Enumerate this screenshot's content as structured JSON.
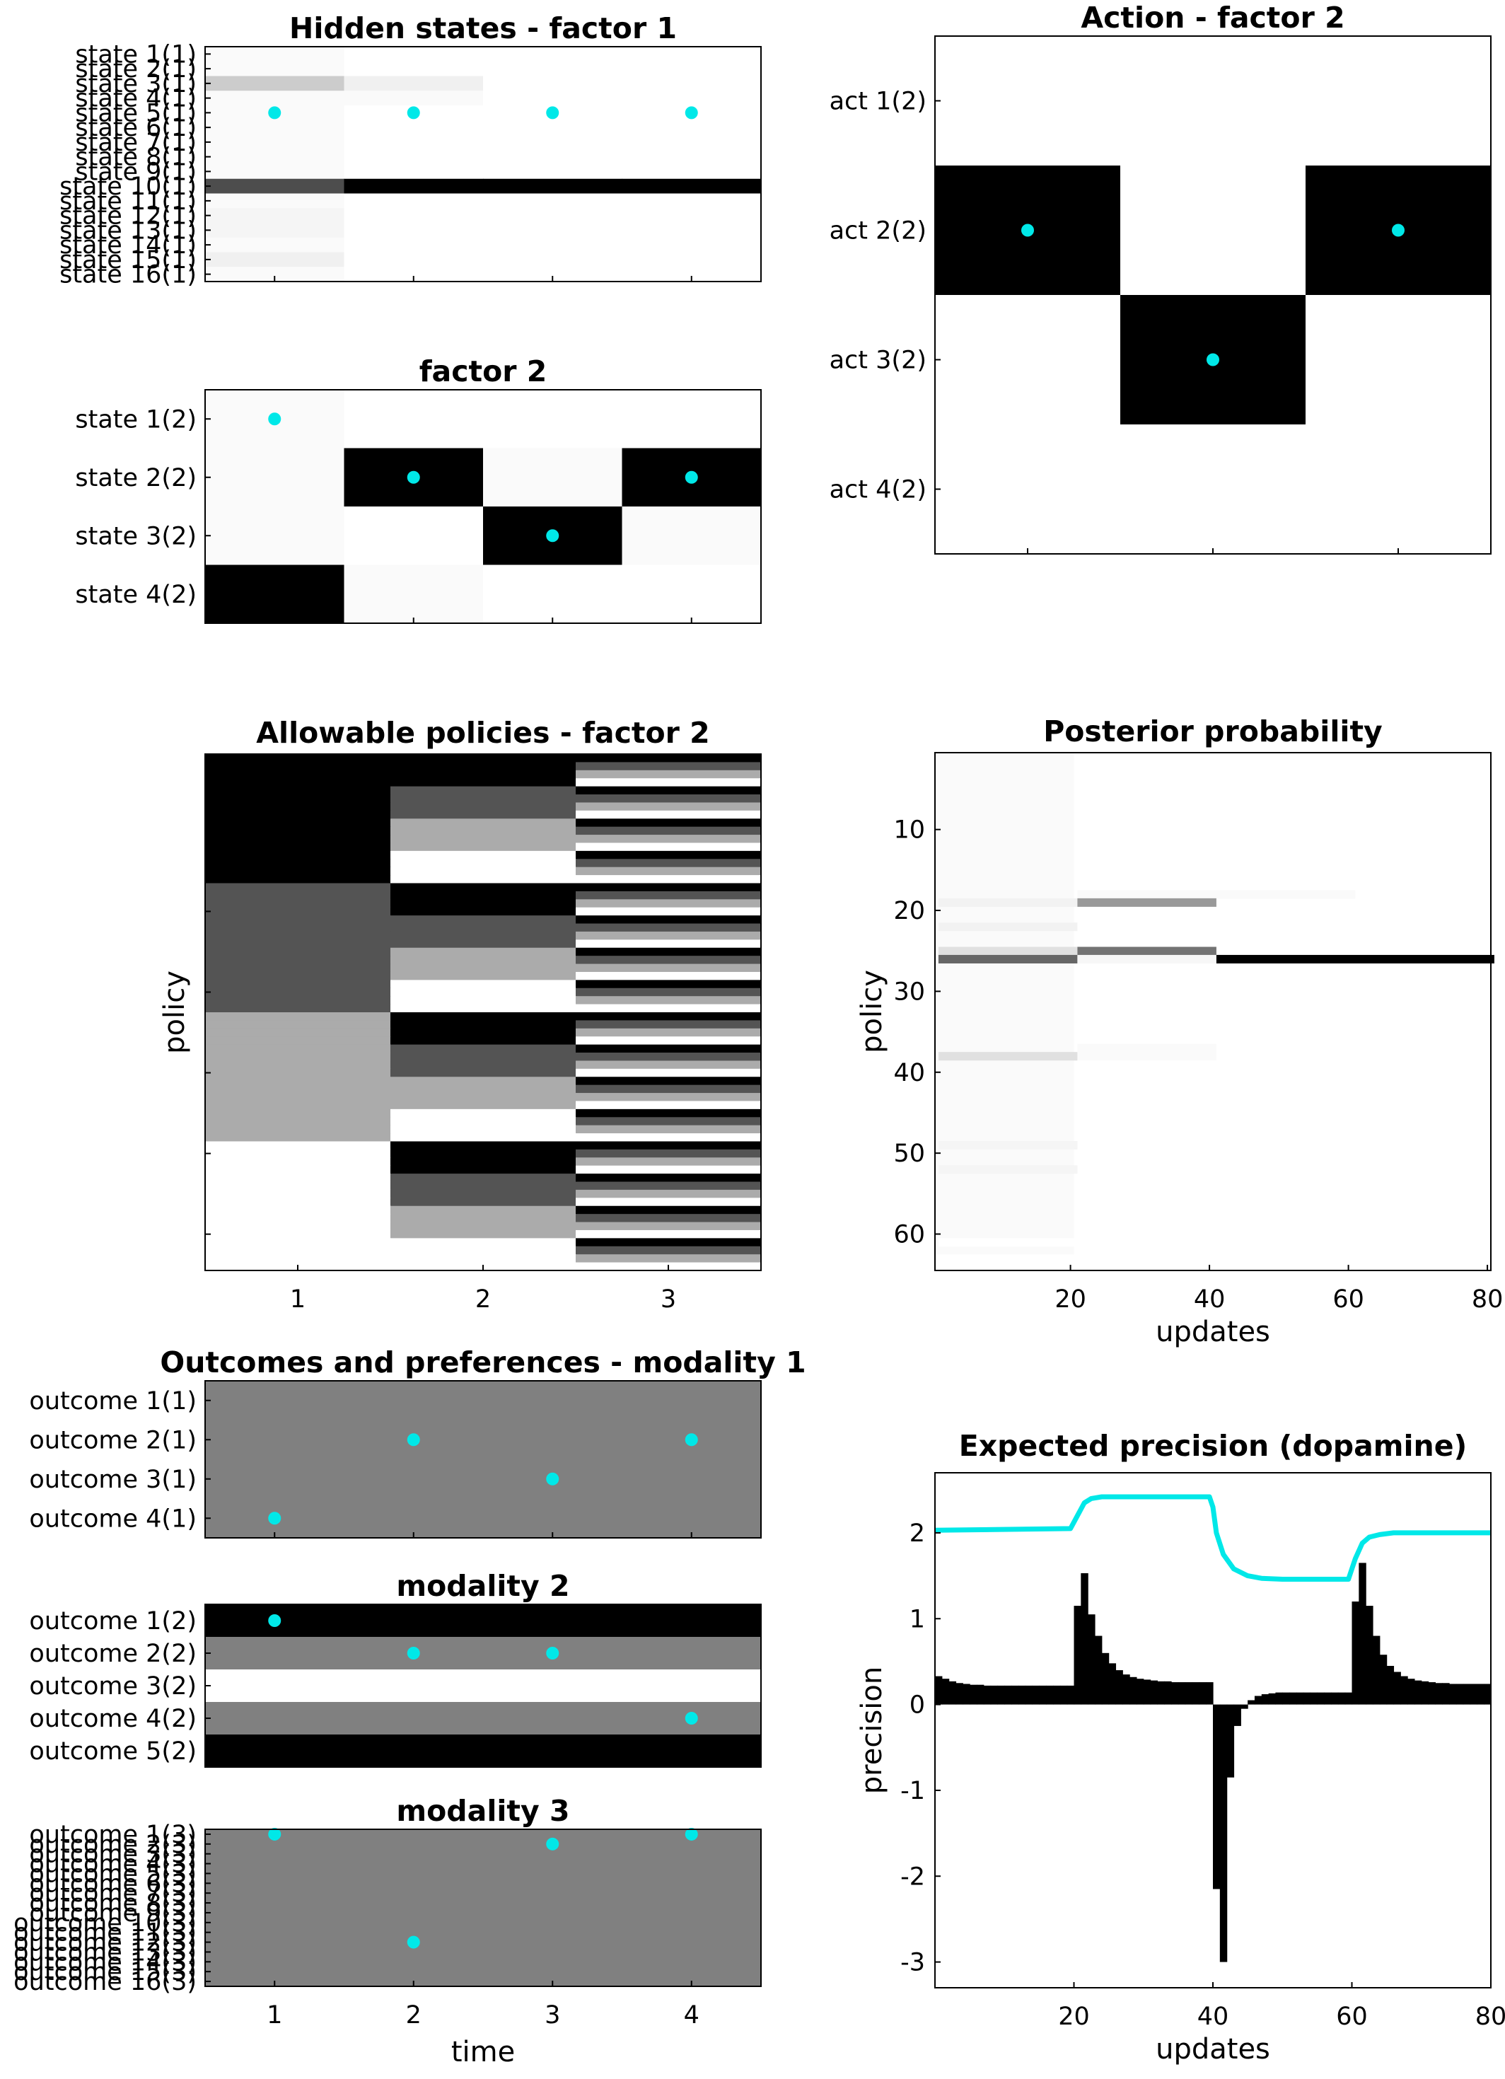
{
  "colors": {
    "marker": "#00e8e8",
    "axis": "#000000",
    "background": "#ffffff",
    "line": "#00e8e8",
    "bar": "#000000"
  },
  "chart_data": [
    {
      "id": "hidden-states-factor-1",
      "type": "heatmap",
      "title": "Hidden states - factor 1",
      "xlabel": "",
      "ylabel": "",
      "xlim": [
        0.5,
        4.5
      ],
      "x_ticks": [
        "1",
        "2",
        "3",
        "4"
      ],
      "rows": [
        "state 1(1)",
        "state 2(1)",
        "state 3(1)",
        "state 4(1)",
        "state 5(1)",
        "state 6(1)",
        "state 7(1)",
        "state 8(1)",
        "state 9(1)",
        "state 10(1)",
        "state 11(1)",
        "state 12(1)",
        "state 13(1)",
        "state 14(1)",
        "state 15(1)",
        "state 16(1)"
      ],
      "values": [
        [
          0.02,
          0,
          0,
          0
        ],
        [
          0.02,
          0,
          0,
          0
        ],
        [
          0.2,
          0.06,
          0,
          0
        ],
        [
          0.02,
          0.02,
          0,
          0
        ],
        [
          0.02,
          0,
          0,
          0
        ],
        [
          0.02,
          0,
          0,
          0
        ],
        [
          0.02,
          0,
          0,
          0
        ],
        [
          0.02,
          0,
          0,
          0
        ],
        [
          0.02,
          0,
          0,
          0
        ],
        [
          0.7,
          1,
          1,
          1
        ],
        [
          0.02,
          0,
          0,
          0
        ],
        [
          0.04,
          0,
          0,
          0
        ],
        [
          0.04,
          0,
          0,
          0
        ],
        [
          0.02,
          0,
          0,
          0
        ],
        [
          0.06,
          0,
          0,
          0
        ],
        [
          0.02,
          0,
          0,
          0
        ]
      ],
      "markers": [
        {
          "x": 1,
          "row": 5
        },
        {
          "x": 2,
          "row": 5
        },
        {
          "x": 3,
          "row": 5
        },
        {
          "x": 4,
          "row": 5
        }
      ]
    },
    {
      "id": "hidden-states-factor-2",
      "type": "heatmap",
      "title": "factor 2",
      "xlabel": "",
      "ylabel": "",
      "xlim": [
        0.5,
        4.5
      ],
      "x_ticks": [],
      "rows": [
        "state 1(2)",
        "state 2(2)",
        "state 3(2)",
        "state 4(2)"
      ],
      "values": [
        [
          0.02,
          0,
          0,
          0
        ],
        [
          0.02,
          1,
          0.02,
          1
        ],
        [
          0.02,
          0,
          1,
          0.02
        ],
        [
          1,
          0.02,
          0,
          0
        ]
      ],
      "markers": [
        {
          "x": 1,
          "row": 1
        },
        {
          "x": 2,
          "row": 2
        },
        {
          "x": 3,
          "row": 3
        },
        {
          "x": 4,
          "row": 2
        }
      ]
    },
    {
      "id": "action-factor-2",
      "type": "heatmap",
      "title": "Action - factor 2",
      "xlabel": "",
      "ylabel": "",
      "xlim": [
        0.5,
        3.5
      ],
      "x_ticks": [],
      "rows": [
        "act 1(2)",
        "act 2(2)",
        "act 3(2)",
        "act 4(2)"
      ],
      "values": [
        [
          0,
          0,
          0
        ],
        [
          1,
          0,
          1
        ],
        [
          0,
          1,
          0
        ],
        [
          0,
          0,
          0
        ]
      ],
      "markers": [
        {
          "x": 1,
          "row": 2
        },
        {
          "x": 2,
          "row": 3
        },
        {
          "x": 3,
          "row": 2
        }
      ]
    },
    {
      "id": "allowable-policies",
      "type": "heatmap",
      "title": "Allowable policies - factor 2",
      "xlabel": "",
      "ylabel": "policy",
      "x_ticks": [
        "1",
        "2",
        "3"
      ],
      "n_policies": 64,
      "levels": [
        1,
        0.67,
        0.33,
        0
      ],
      "rule": "column 1 = action index of floor(p/16); column 2 = floor(p/4) mod 4; column 3 = p mod 4; level 1 = black, 0 = white"
    },
    {
      "id": "posterior-probability",
      "type": "heatmap",
      "title": "Posterior probability",
      "xlabel": "updates",
      "ylabel": "policy",
      "xlim": [
        0.5,
        80.5
      ],
      "ylim": [
        0.5,
        64.5
      ],
      "x_ticks": [
        "20",
        "40",
        "60",
        "80"
      ],
      "y_ticks": [
        "10",
        "20",
        "30",
        "40",
        "50",
        "60"
      ],
      "background_level": 0.02,
      "first_block_updates": [
        1,
        20
      ],
      "cells": [
        {
          "policy": 19,
          "updates": [
            1,
            20
          ],
          "value": 0.05
        },
        {
          "policy": 22,
          "updates": [
            1,
            20
          ],
          "value": 0.05
        },
        {
          "policy": 25,
          "updates": [
            1,
            20
          ],
          "value": 0.12
        },
        {
          "policy": 26,
          "updates": [
            1,
            20
          ],
          "value": 0.6
        },
        {
          "policy": 38,
          "updates": [
            1,
            20
          ],
          "value": 0.12
        },
        {
          "policy": 49,
          "updates": [
            1,
            20
          ],
          "value": 0.04
        },
        {
          "policy": 52,
          "updates": [
            1,
            20
          ],
          "value": 0.04
        },
        {
          "policy": 61,
          "updates": [
            1,
            20
          ],
          "value": 0.0
        },
        {
          "policy": 18,
          "updates": [
            21,
            40
          ],
          "value": 0.02
        },
        {
          "policy": 19,
          "updates": [
            21,
            40
          ],
          "value": 0.4
        },
        {
          "policy": 25,
          "updates": [
            21,
            40
          ],
          "value": 0.55
        },
        {
          "policy": 26,
          "updates": [
            21,
            40
          ],
          "value": 0.03
        },
        {
          "policy": 37,
          "updates": [
            21,
            40
          ],
          "value": 0.02
        },
        {
          "policy": 38,
          "updates": [
            21,
            40
          ],
          "value": 0.02
        },
        {
          "policy": 18,
          "updates": [
            41,
            60
          ],
          "value": 0.02
        },
        {
          "policy": 26,
          "updates": [
            41,
            80
          ],
          "value": 1.0
        }
      ]
    },
    {
      "id": "outcomes-modality-1",
      "type": "heatmap",
      "title": "Outcomes and preferences - modality 1",
      "xlabel": "",
      "ylabel": "",
      "xlim": [
        0.5,
        4.5
      ],
      "x_ticks": [],
      "rows": [
        "outcome 1(1)",
        "outcome 2(1)",
        "outcome 3(1)",
        "outcome 4(1)"
      ],
      "row_levels": [
        0.5,
        0.5,
        0.5,
        0.5
      ],
      "markers": [
        {
          "x": 1,
          "row": 4
        },
        {
          "x": 2,
          "row": 2
        },
        {
          "x": 3,
          "row": 3
        },
        {
          "x": 4,
          "row": 2
        }
      ]
    },
    {
      "id": "outcomes-modality-2",
      "type": "heatmap",
      "title": "modality 2",
      "xlabel": "",
      "ylabel": "",
      "xlim": [
        0.5,
        4.5
      ],
      "x_ticks": [],
      "rows": [
        "outcome 1(2)",
        "outcome 2(2)",
        "outcome 3(2)",
        "outcome 4(2)",
        "outcome 5(2)"
      ],
      "row_levels": [
        1,
        0.5,
        0,
        0.5,
        1
      ],
      "markers": [
        {
          "x": 1,
          "row": 1
        },
        {
          "x": 2,
          "row": 2
        },
        {
          "x": 3,
          "row": 2
        },
        {
          "x": 4,
          "row": 4
        }
      ]
    },
    {
      "id": "outcomes-modality-3",
      "type": "heatmap",
      "title": "modality 3",
      "xlabel": "time",
      "ylabel": "",
      "xlim": [
        0.5,
        4.5
      ],
      "x_ticks": [
        "1",
        "2",
        "3",
        "4"
      ],
      "rows": [
        "outcome 1(3)",
        "outcome 2(3)",
        "outcome 3(3)",
        "outcome 4(3)",
        "outcome 5(3)",
        "outcome 6(3)",
        "outcome 7(3)",
        "outcome 8(3)",
        "outcome 9(3)",
        "outcome 10(3)",
        "outcome 11(3)",
        "outcome 12(3)",
        "outcome 13(3)",
        "outcome 14(3)",
        "outcome 15(3)",
        "outcome 16(3)"
      ],
      "row_levels": [
        0.5,
        0.5,
        0.5,
        0.5,
        0.5,
        0.5,
        0.5,
        0.5,
        0.5,
        0.5,
        0.5,
        0.5,
        0.5,
        0.5,
        0.5,
        0.5
      ],
      "markers": [
        {
          "x": 1,
          "row": 1
        },
        {
          "x": 2,
          "row": 12
        },
        {
          "x": 3,
          "row": 2
        },
        {
          "x": 4,
          "row": 1
        }
      ]
    },
    {
      "id": "expected-precision",
      "type": "bar",
      "title": "Expected precision (dopamine)",
      "xlabel": "updates",
      "ylabel": "precision",
      "xlim": [
        0,
        80
      ],
      "ylim": [
        -3.3,
        2.7
      ],
      "x_ticks": [
        "20",
        "40",
        "60",
        "80"
      ],
      "y_ticks": [
        "-3",
        "-2",
        "-1",
        "0",
        "1",
        "2"
      ],
      "bars": [
        0.33,
        0.3,
        0.27,
        0.25,
        0.24,
        0.23,
        0.23,
        0.22,
        0.22,
        0.22,
        0.22,
        0.22,
        0.22,
        0.22,
        0.22,
        0.22,
        0.22,
        0.22,
        0.22,
        0.22,
        1.15,
        1.53,
        1.05,
        0.8,
        0.6,
        0.48,
        0.4,
        0.35,
        0.32,
        0.3,
        0.29,
        0.28,
        0.27,
        0.27,
        0.26,
        0.26,
        0.26,
        0.26,
        0.26,
        0.26,
        -2.15,
        -3.0,
        -0.85,
        -0.25,
        -0.05,
        0.05,
        0.1,
        0.12,
        0.13,
        0.14,
        0.14,
        0.14,
        0.14,
        0.14,
        0.14,
        0.14,
        0.14,
        0.14,
        0.14,
        0.14,
        1.2,
        1.65,
        1.15,
        0.8,
        0.58,
        0.45,
        0.38,
        0.33,
        0.3,
        0.28,
        0.27,
        0.26,
        0.25,
        0.25,
        0.24,
        0.24,
        0.24,
        0.24,
        0.24,
        0.24
      ],
      "line": {
        "name": "",
        "x": [
          0,
          19.5,
          20.5,
          21.5,
          22.5,
          24,
          39.5,
          40,
          40.5,
          41.5,
          43,
          45,
          47,
          50,
          59.5,
          60.5,
          61.5,
          62.5,
          64,
          66,
          80
        ],
        "y": [
          2.03,
          2.05,
          2.2,
          2.35,
          2.4,
          2.42,
          2.42,
          2.3,
          2.0,
          1.75,
          1.58,
          1.5,
          1.47,
          1.46,
          1.46,
          1.7,
          1.88,
          1.95,
          1.98,
          2.0,
          2.0
        ]
      }
    }
  ]
}
